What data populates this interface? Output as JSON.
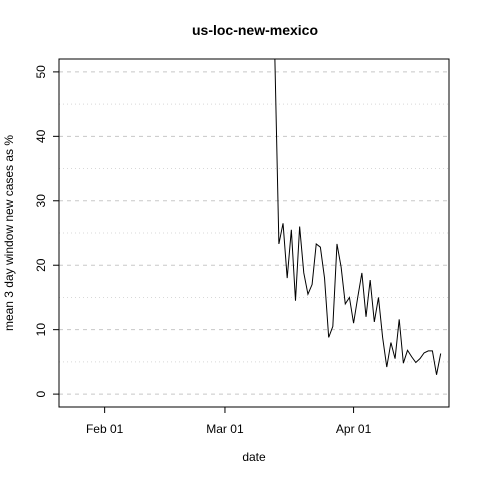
{
  "chart_data": {
    "type": "line",
    "title": "us-loc-new-mexico",
    "xlabel": "date",
    "ylabel": "mean  3  day window new cases as %",
    "ylim": [
      -2,
      52
    ],
    "xlim": [
      "2020-01-21",
      "2020-04-24"
    ],
    "y_ticks": [
      0,
      10,
      20,
      30,
      40,
      50
    ],
    "x_ticks": [
      {
        "date": "2020-02-01",
        "label": "Feb 01"
      },
      {
        "date": "2020-03-01",
        "label": "Mar 01"
      },
      {
        "date": "2020-04-01",
        "label": "Apr 01"
      }
    ],
    "grid": {
      "major": "dashed",
      "minor": "dotted"
    },
    "series": [
      {
        "x": [
          "2020-03-13",
          "2020-03-14",
          "2020-03-15",
          "2020-03-16",
          "2020-03-17",
          "2020-03-18",
          "2020-03-19",
          "2020-03-20",
          "2020-03-21",
          "2020-03-22",
          "2020-03-23",
          "2020-03-24",
          "2020-03-25",
          "2020-03-26",
          "2020-03-27",
          "2020-03-28",
          "2020-03-29",
          "2020-03-30",
          "2020-03-31",
          "2020-04-01",
          "2020-04-02",
          "2020-04-03",
          "2020-04-04",
          "2020-04-05",
          "2020-04-06",
          "2020-04-07",
          "2020-04-08",
          "2020-04-09",
          "2020-04-10",
          "2020-04-11",
          "2020-04-12",
          "2020-04-13",
          "2020-04-14",
          "2020-04-15",
          "2020-04-16",
          "2020-04-17",
          "2020-04-18",
          "2020-04-19",
          "2020-04-20",
          "2020-04-21",
          "2020-04-22"
        ],
        "values": [
          53,
          23.3,
          26.5,
          18,
          25.5,
          14.5,
          26,
          18.8,
          15.5,
          17,
          23.3,
          22.8,
          18,
          8.8,
          10.5,
          23.3,
          19.7,
          14,
          15,
          11,
          15,
          18.8,
          12,
          17.7,
          11.2,
          15,
          8.8,
          4.2,
          8,
          5.5,
          11.6,
          4.8,
          6.8,
          5.8,
          4.9,
          5.5,
          6.4,
          6.7,
          6.7,
          3,
          6.3
        ]
      }
    ]
  }
}
